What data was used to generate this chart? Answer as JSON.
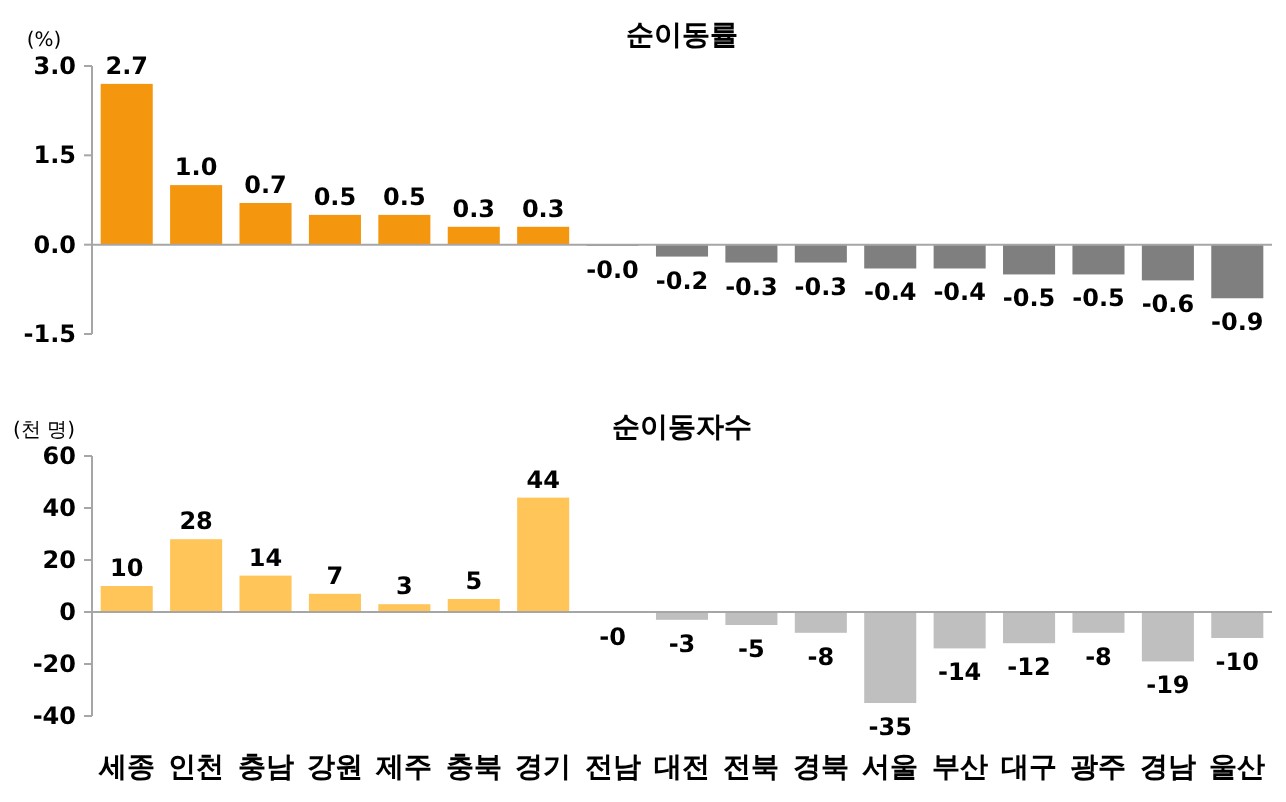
{
  "chart_data": [
    {
      "type": "bar",
      "title": "순이동률",
      "ylabel": "(%)",
      "categories": [
        null,
        null,
        null,
        null,
        null,
        null,
        null,
        null,
        null,
        null,
        null,
        null,
        null,
        null,
        null,
        null,
        null
      ],
      "values": [
        2.7,
        1.0,
        0.7,
        0.5,
        0.5,
        0.3,
        0.3,
        -0.02,
        -0.2,
        -0.3,
        -0.3,
        -0.4,
        -0.4,
        -0.5,
        -0.5,
        -0.6,
        -0.9
      ],
      "value_labels": [
        "2.7",
        "1.0",
        "0.7",
        "0.5",
        "0.5",
        "0.3",
        "0.3",
        "-0.0",
        "-0.2",
        "-0.3",
        "-0.3",
        "-0.4",
        "-0.4",
        "-0.5",
        "-0.5",
        "-0.6",
        "-0.9"
      ],
      "colors": [
        "#f5960f",
        "#f5960f",
        "#f5960f",
        "#f5960f",
        "#f5960f",
        "#f5960f",
        "#f5960f",
        "#7f7f7f",
        "#7f7f7f",
        "#7f7f7f",
        "#7f7f7f",
        "#7f7f7f",
        "#7f7f7f",
        "#7f7f7f",
        "#7f7f7f",
        "#7f7f7f",
        "#7f7f7f"
      ],
      "ylim": [
        -1.5,
        3.0
      ],
      "yticks": [
        {
          "value": -1.5,
          "label": "-1.5"
        },
        {
          "value": 0,
          "label": "0.0"
        },
        {
          "value": 1.5,
          "label": "1.5"
        },
        {
          "value": 3.0,
          "label": "3.0"
        }
      ],
      "tick_labels": "y"
    },
    {
      "type": "bar",
      "title": "순이동자수",
      "ylabel": "(천 명)",
      "categories": [
        "세종",
        "인천",
        "충남",
        "강원",
        "제주",
        "충북",
        "경기",
        "전남",
        "대전",
        "전북",
        "경북",
        "서울",
        "부산",
        "대구",
        "광주",
        "경남",
        "울산"
      ],
      "values": [
        10,
        28,
        14,
        7,
        3,
        5,
        44,
        -0.3,
        -3,
        -5,
        -8,
        -35,
        -14,
        -12,
        -8,
        -19,
        -10
      ],
      "value_labels": [
        "10",
        "28",
        "14",
        "7",
        "3",
        "5",
        "44",
        "-0",
        "-3",
        "-5",
        "-8",
        "-35",
        "-14",
        "-12",
        "-8",
        "-19",
        "-10"
      ],
      "colors": [
        "#ffc559",
        "#ffc559",
        "#ffc559",
        "#ffc559",
        "#ffc559",
        "#ffc559",
        "#ffc559",
        "#bfbfbf",
        "#bfbfbf",
        "#bfbfbf",
        "#bfbfbf",
        "#bfbfbf",
        "#bfbfbf",
        "#bfbfbf",
        "#bfbfbf",
        "#bfbfbf",
        "#bfbfbf"
      ],
      "ylim": [
        -40,
        60
      ],
      "yticks": [
        -40,
        -20,
        0,
        20,
        40,
        60
      ]
    }
  ]
}
